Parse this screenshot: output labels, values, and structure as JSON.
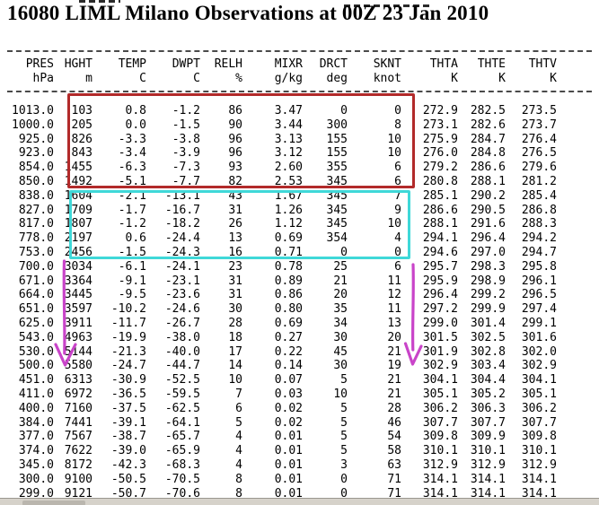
{
  "title": "16080 LIML Milano Observations at 00Z 23 Jan 2010",
  "table": {
    "columns": [
      {
        "name": "PRES",
        "unit": "hPa"
      },
      {
        "name": "HGHT",
        "unit": "m"
      },
      {
        "name": "TEMP",
        "unit": "C"
      },
      {
        "name": "DWPT",
        "unit": "C"
      },
      {
        "name": "RELH",
        "unit": "%"
      },
      {
        "name": "MIXR",
        "unit": "g/kg"
      },
      {
        "name": "DRCT",
        "unit": "deg"
      },
      {
        "name": "SKNT",
        "unit": "knot"
      },
      {
        "name": "THTA",
        "unit": "K"
      },
      {
        "name": "THTE",
        "unit": "K"
      },
      {
        "name": "THTV",
        "unit": "K"
      }
    ],
    "rows": [
      [
        "1013.0",
        "103",
        "0.8",
        "-1.2",
        "86",
        "3.47",
        "0",
        "0",
        "272.9",
        "282.5",
        "273.5"
      ],
      [
        "1000.0",
        "205",
        "0.0",
        "-1.5",
        "90",
        "3.44",
        "300",
        "8",
        "273.1",
        "282.6",
        "273.7"
      ],
      [
        "925.0",
        "826",
        "-3.3",
        "-3.8",
        "96",
        "3.13",
        "155",
        "10",
        "275.9",
        "284.7",
        "276.4"
      ],
      [
        "923.0",
        "843",
        "-3.4",
        "-3.9",
        "96",
        "3.12",
        "155",
        "10",
        "276.0",
        "284.8",
        "276.5"
      ],
      [
        "854.0",
        "1455",
        "-6.3",
        "-7.3",
        "93",
        "2.60",
        "355",
        "6",
        "279.2",
        "286.6",
        "279.6"
      ],
      [
        "850.0",
        "1492",
        "-5.1",
        "-7.7",
        "82",
        "2.53",
        "345",
        "6",
        "280.8",
        "288.1",
        "281.2"
      ],
      [
        "838.0",
        "1604",
        "-2.1",
        "-13.1",
        "43",
        "1.67",
        "345",
        "7",
        "285.1",
        "290.2",
        "285.4"
      ],
      [
        "827.0",
        "1709",
        "-1.7",
        "-16.7",
        "31",
        "1.26",
        "345",
        "9",
        "286.6",
        "290.5",
        "286.8"
      ],
      [
        "817.0",
        "1807",
        "-1.2",
        "-18.2",
        "26",
        "1.12",
        "345",
        "10",
        "288.1",
        "291.6",
        "288.3"
      ],
      [
        "778.0",
        "2197",
        "0.6",
        "-24.4",
        "13",
        "0.69",
        "354",
        "4",
        "294.1",
        "296.4",
        "294.2"
      ],
      [
        "753.0",
        "2456",
        "-1.5",
        "-24.3",
        "16",
        "0.71",
        "0",
        "0",
        "294.6",
        "297.0",
        "294.7"
      ],
      [
        "700.0",
        "3034",
        "-6.1",
        "-24.1",
        "23",
        "0.78",
        "25",
        "6",
        "295.7",
        "298.3",
        "295.8"
      ],
      [
        "671.0",
        "3364",
        "-9.1",
        "-23.1",
        "31",
        "0.89",
        "21",
        "11",
        "295.9",
        "298.9",
        "296.1"
      ],
      [
        "664.0",
        "3445",
        "-9.5",
        "-23.6",
        "31",
        "0.86",
        "20",
        "12",
        "296.4",
        "299.2",
        "296.5"
      ],
      [
        "651.0",
        "3597",
        "-10.2",
        "-24.6",
        "30",
        "0.80",
        "35",
        "11",
        "297.2",
        "299.9",
        "297.4"
      ],
      [
        "625.0",
        "3911",
        "-11.7",
        "-26.7",
        "28",
        "0.69",
        "34",
        "13",
        "299.0",
        "301.4",
        "299.1"
      ],
      [
        "543.0",
        "4963",
        "-19.9",
        "-38.0",
        "18",
        "0.27",
        "30",
        "20",
        "301.5",
        "302.5",
        "301.6"
      ],
      [
        "530.0",
        "5144",
        "-21.3",
        "-40.0",
        "17",
        "0.22",
        "45",
        "21",
        "301.9",
        "302.8",
        "302.0"
      ],
      [
        "500.0",
        "5580",
        "-24.7",
        "-44.7",
        "14",
        "0.14",
        "30",
        "19",
        "302.9",
        "303.4",
        "302.9"
      ],
      [
        "451.0",
        "6313",
        "-30.9",
        "-52.5",
        "10",
        "0.07",
        "5",
        "21",
        "304.1",
        "304.4",
        "304.1"
      ],
      [
        "411.0",
        "6972",
        "-36.5",
        "-59.5",
        "7",
        "0.03",
        "10",
        "21",
        "305.1",
        "305.2",
        "305.1"
      ],
      [
        "400.0",
        "7160",
        "-37.5",
        "-62.5",
        "6",
        "0.02",
        "5",
        "28",
        "306.2",
        "306.3",
        "306.2"
      ],
      [
        "384.0",
        "7441",
        "-39.1",
        "-64.1",
        "5",
        "0.02",
        "5",
        "46",
        "307.7",
        "307.7",
        "307.7"
      ],
      [
        "377.0",
        "7567",
        "-38.7",
        "-65.7",
        "4",
        "0.01",
        "5",
        "54",
        "309.8",
        "309.9",
        "309.8"
      ],
      [
        "374.0",
        "7622",
        "-39.0",
        "-65.9",
        "4",
        "0.01",
        "5",
        "58",
        "310.1",
        "310.1",
        "310.1"
      ],
      [
        "345.0",
        "8172",
        "-42.3",
        "-68.3",
        "4",
        "0.01",
        "3",
        "63",
        "312.9",
        "312.9",
        "312.9"
      ],
      [
        "300.0",
        "9100",
        "-50.5",
        "-70.5",
        "8",
        "0.01",
        "0",
        "71",
        "314.1",
        "314.1",
        "314.1"
      ],
      [
        "299.0",
        "9121",
        "-50.7",
        "-70.6",
        "8",
        "0.01",
        "0",
        "71",
        "314.1",
        "314.1",
        "314.1"
      ]
    ]
  },
  "annotations": {
    "red_box_color": "#b22a2a",
    "cyan_box_color": "#3fd8d8",
    "arrow_color": "#c944c9"
  }
}
